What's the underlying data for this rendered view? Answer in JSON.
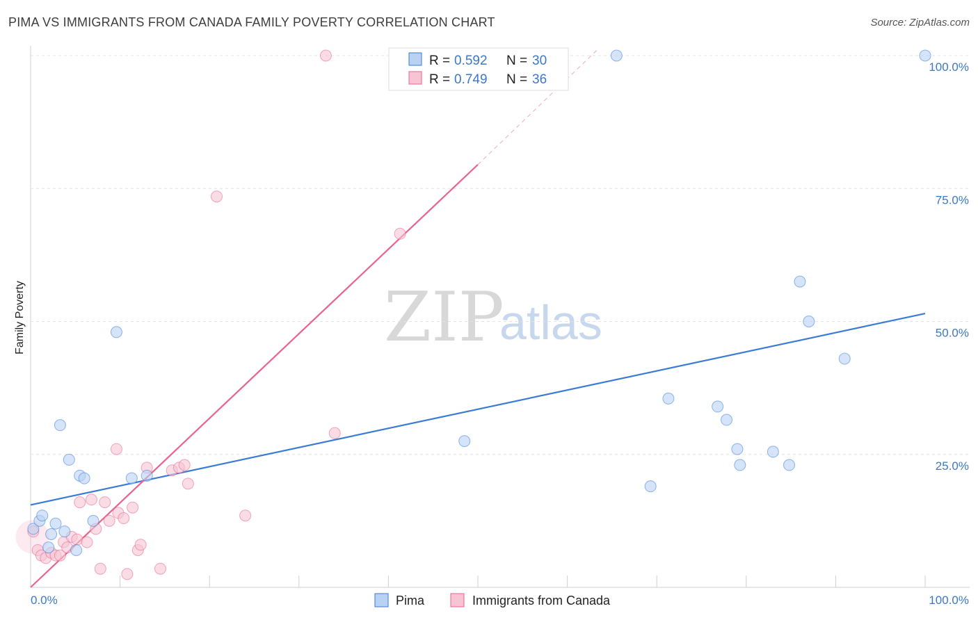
{
  "title": "PIMA VS IMMIGRANTS FROM CANADA FAMILY POVERTY CORRELATION CHART",
  "source": "Source: ZipAtlas.com",
  "watermark": {
    "zip": "ZIP",
    "atlas": "atlas"
  },
  "colors": {
    "blue": "#3a7bd5",
    "pink": "#e8638f",
    "blue_fill": "#b9d2f3",
    "pink_fill": "#f7c4d4",
    "axis_label": "#3b78c9"
  },
  "legend": {
    "rows": [
      {
        "r_label": "R = ",
        "r_value": "0.592",
        "n_label": "N = ",
        "n_value": "30",
        "series": "blue"
      },
      {
        "r_label": "R = ",
        "r_value": "0.749",
        "n_label": "N = ",
        "n_value": "36",
        "series": "pink"
      }
    ]
  },
  "chart_data": {
    "type": "scatter",
    "title": "PIMA VS IMMIGRANTS FROM CANADA FAMILY POVERTY CORRELATION CHART",
    "xlabel": "",
    "ylabel": "Family Poverty",
    "xlim": [
      0,
      100
    ],
    "ylim": [
      0,
      100
    ],
    "x_tick_labels": [
      "0.0%",
      "100.0%"
    ],
    "y_tick_labels": [
      "25.0%",
      "50.0%",
      "75.0%",
      "100.0%"
    ],
    "y_ticks": [
      25,
      50,
      75,
      100
    ],
    "grid": true,
    "legend_position": "top-center",
    "series": [
      {
        "name": "Pima",
        "color": "#3a7bd5",
        "fill": "#b9d2f3",
        "points": [
          [
            0.3,
            11.0
          ],
          [
            1.0,
            12.5
          ],
          [
            1.3,
            13.5
          ],
          [
            2.0,
            7.5
          ],
          [
            2.3,
            10.0
          ],
          [
            2.8,
            12.0
          ],
          [
            3.3,
            30.5
          ],
          [
            3.8,
            10.5
          ],
          [
            4.3,
            24.0
          ],
          [
            5.1,
            7.0
          ],
          [
            5.5,
            21.0
          ],
          [
            6.0,
            20.5
          ],
          [
            7.0,
            12.5
          ],
          [
            9.6,
            48.0
          ],
          [
            11.3,
            20.5
          ],
          [
            13.0,
            21.0
          ],
          [
            48.5,
            27.5
          ],
          [
            65.5,
            100.0
          ],
          [
            69.3,
            19.0
          ],
          [
            71.3,
            35.5
          ],
          [
            76.8,
            34.0
          ],
          [
            77.8,
            31.5
          ],
          [
            79.0,
            26.0
          ],
          [
            79.3,
            23.0
          ],
          [
            83.0,
            25.5
          ],
          [
            84.8,
            23.0
          ],
          [
            86.0,
            57.5
          ],
          [
            87.0,
            50.0
          ],
          [
            91.0,
            43.0
          ],
          [
            100.0,
            100.0
          ]
        ]
      },
      {
        "name": "Immigrants from Canada",
        "color": "#e8638f",
        "fill": "#f7c4d4",
        "points": [
          [
            0.3,
            10.5
          ],
          [
            0.8,
            7.0
          ],
          [
            1.2,
            6.0
          ],
          [
            1.7,
            5.5
          ],
          [
            2.3,
            6.5
          ],
          [
            2.8,
            6.0
          ],
          [
            3.3,
            6.0
          ],
          [
            3.7,
            8.5
          ],
          [
            4.1,
            7.5
          ],
          [
            4.6,
            9.5
          ],
          [
            5.2,
            9.0
          ],
          [
            5.5,
            16.0
          ],
          [
            6.3,
            8.5
          ],
          [
            6.8,
            16.5
          ],
          [
            7.3,
            11.0
          ],
          [
            7.8,
            3.5
          ],
          [
            8.3,
            16.0
          ],
          [
            8.8,
            12.5
          ],
          [
            9.6,
            26.0
          ],
          [
            9.8,
            14.0
          ],
          [
            10.4,
            13.0
          ],
          [
            10.8,
            2.5
          ],
          [
            11.4,
            15.0
          ],
          [
            12.0,
            7.0
          ],
          [
            12.3,
            8.0
          ],
          [
            13.0,
            22.5
          ],
          [
            14.5,
            3.5
          ],
          [
            15.8,
            22.0
          ],
          [
            16.6,
            22.5
          ],
          [
            17.2,
            23.0
          ],
          [
            17.6,
            19.5
          ],
          [
            20.8,
            73.5
          ],
          [
            24.0,
            13.5
          ],
          [
            33.0,
            100.0
          ],
          [
            34.0,
            29.0
          ],
          [
            41.3,
            66.5
          ]
        ]
      }
    ],
    "trend_lines": [
      {
        "series": "Pima",
        "x0": 0,
        "y0": 15.5,
        "x1": 100,
        "y1": 51.5,
        "dashed_extension": false
      },
      {
        "series": "Immigrants from Canada",
        "x0": 0,
        "y0": 0.0,
        "x1": 50,
        "y1": 79.5,
        "dashed_to_x": 63.3,
        "dashed_to_y": 101.0
      }
    ]
  },
  "bottom_legend": [
    {
      "label": "Pima",
      "series": "blue"
    },
    {
      "label": "Immigrants from Canada",
      "series": "pink"
    }
  ]
}
